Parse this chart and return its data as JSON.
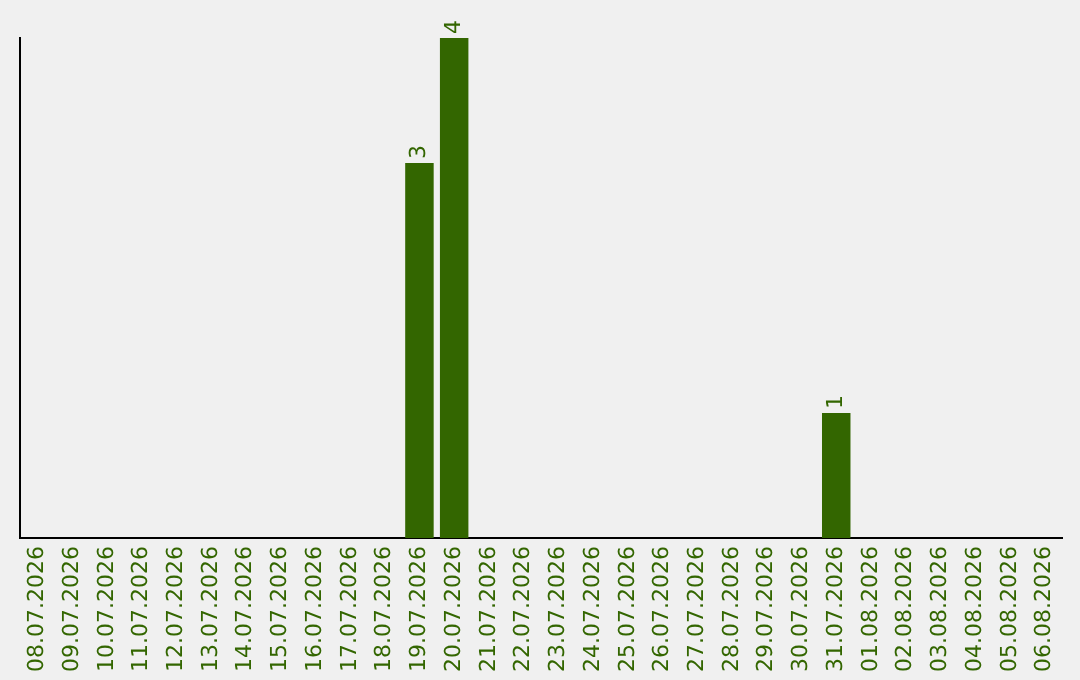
{
  "chart_data": {
    "type": "bar",
    "categories": [
      "08.07.2026",
      "09.07.2026",
      "10.07.2026",
      "11.07.2026",
      "12.07.2026",
      "13.07.2026",
      "14.07.2026",
      "15.07.2026",
      "16.07.2026",
      "17.07.2026",
      "18.07.2026",
      "19.07.2026",
      "20.07.2026",
      "21.07.2026",
      "22.07.2026",
      "23.07.2026",
      "24.07.2026",
      "25.07.2026",
      "26.07.2026",
      "27.07.2026",
      "28.07.2026",
      "29.07.2026",
      "30.07.2026",
      "31.07.2026",
      "01.08.2026",
      "02.08.2026",
      "03.08.2026",
      "04.08.2026",
      "05.08.2026",
      "06.08.2026"
    ],
    "values": [
      0,
      0,
      0,
      0,
      0,
      0,
      0,
      0,
      0,
      0,
      0,
      3,
      4,
      0,
      0,
      0,
      0,
      0,
      0,
      0,
      0,
      0,
      0,
      1,
      0,
      0,
      0,
      0,
      0,
      0
    ],
    "value_labels": [
      null,
      null,
      null,
      null,
      null,
      null,
      null,
      null,
      null,
      null,
      null,
      "3",
      "4",
      null,
      null,
      null,
      null,
      null,
      null,
      null,
      null,
      null,
      null,
      "1",
      null,
      null,
      null,
      null,
      null,
      null
    ],
    "color": "#336600",
    "ylim": [
      0,
      4
    ],
    "tick_labels": "x",
    "grid": false,
    "legend": false
  }
}
